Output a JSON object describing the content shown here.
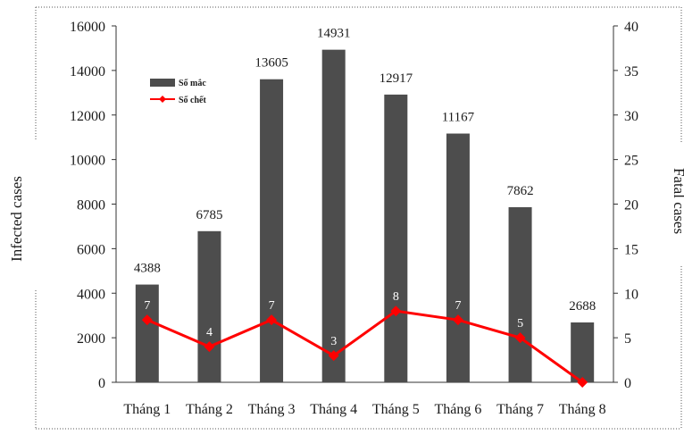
{
  "chart_data": {
    "type": "bar",
    "categories": [
      "Tháng 1",
      "Tháng 2",
      "Tháng 3",
      "Tháng 4",
      "Tháng 5",
      "Tháng 6",
      "Tháng 7",
      "Tháng 8"
    ],
    "series": [
      {
        "name": "Số mắc",
        "type": "bar",
        "axis": "left",
        "color": "#4d4d4d",
        "values": [
          4388,
          6785,
          13605,
          14931,
          12917,
          11167,
          7862,
          2688
        ]
      },
      {
        "name": "Số chết",
        "type": "line",
        "axis": "right",
        "color": "#ff0000",
        "values": [
          7,
          4,
          7,
          3,
          8,
          7,
          5,
          0
        ],
        "labels": [
          "7",
          "4",
          "7",
          "3",
          "8",
          "7",
          "5",
          ""
        ]
      }
    ],
    "ylabel": "Infected cases",
    "y2label": "Fatal cases",
    "ylim": [
      0,
      16000
    ],
    "y2lim": [
      0,
      40
    ],
    "yticks": [
      "0",
      "2000",
      "4000",
      "6000",
      "8000",
      "10000",
      "12000",
      "14000",
      "16000"
    ],
    "y2ticks": [
      "0",
      "5",
      "10",
      "15",
      "20",
      "25",
      "30",
      "35",
      "40"
    ],
    "grid": false,
    "legend": "top-left"
  }
}
